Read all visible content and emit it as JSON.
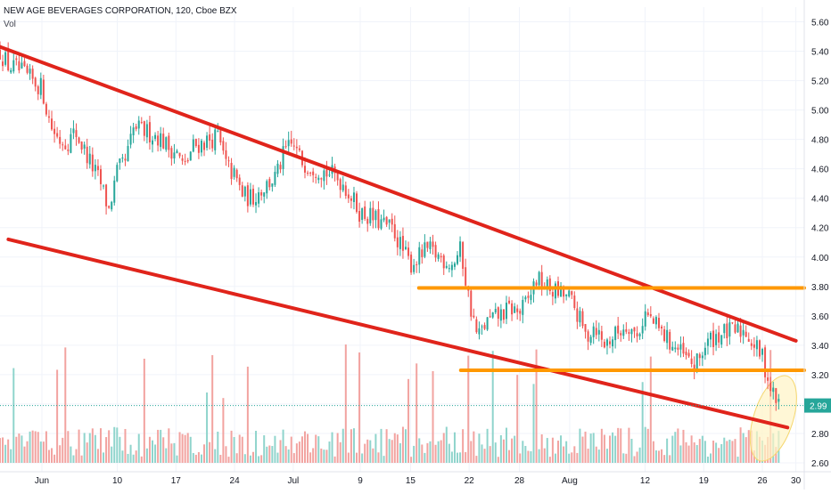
{
  "header": {
    "title": "NEW AGE BEVERAGES CORPORATION, 120, Cboe BZX",
    "volume_label": "Vol"
  },
  "colors": {
    "up": "#26a69a",
    "down": "#ef5350",
    "volume_up": "#8fd4cc",
    "volume_down": "#f2a3a0",
    "trendline": "#e0241b",
    "support": "#ff9800",
    "last_price": "#26a69a",
    "highlight": "#fff3c4",
    "highlight_border": "#f5d76e"
  },
  "chart_data": {
    "type": "candlestick",
    "price_scale": {
      "min": 2.6,
      "max": 5.7,
      "ticks": [
        "5.60",
        "5.40",
        "5.20",
        "5.00",
        "4.80",
        "4.60",
        "4.40",
        "4.20",
        "4.00",
        "3.80",
        "3.60",
        "3.40",
        "3.20",
        "3.00",
        "2.80",
        "2.60"
      ]
    },
    "time_scale": {
      "start": "2020-05-27",
      "end": "2020-08-31",
      "ticks": [
        {
          "label": "Jun",
          "date": "2020-06-01"
        },
        {
          "label": "10",
          "date": "2020-06-10"
        },
        {
          "label": "17",
          "date": "2020-06-17"
        },
        {
          "label": "24",
          "date": "2020-06-24"
        },
        {
          "label": "Jul",
          "date": "2020-07-01"
        },
        {
          "label": "9",
          "date": "2020-07-09"
        },
        {
          "label": "15",
          "date": "2020-07-15"
        },
        {
          "label": "22",
          "date": "2020-07-22"
        },
        {
          "label": "28",
          "date": "2020-07-28"
        },
        {
          "label": "Aug",
          "date": "2020-08-03"
        },
        {
          "label": "12",
          "date": "2020-08-12"
        },
        {
          "label": "19",
          "date": "2020-08-19"
        },
        {
          "label": "26",
          "date": "2020-08-26"
        },
        {
          "label": "30",
          "date": "2020-08-30"
        }
      ]
    },
    "last_price": "2.99",
    "price_path": [
      [
        "2020-05-27",
        5.4
      ],
      [
        "2020-05-28",
        5.3
      ],
      [
        "2020-05-29",
        5.28
      ],
      [
        "2020-06-01",
        5.15
      ],
      [
        "2020-06-02",
        4.9
      ],
      [
        "2020-06-03",
        4.8
      ],
      [
        "2020-06-04",
        4.78
      ],
      [
        "2020-06-05",
        4.85
      ],
      [
        "2020-06-08",
        4.5
      ],
      [
        "2020-06-09",
        4.32
      ],
      [
        "2020-06-10",
        4.58
      ],
      [
        "2020-06-11",
        4.65
      ],
      [
        "2020-06-12",
        4.88
      ],
      [
        "2020-06-15",
        4.82
      ],
      [
        "2020-06-16",
        4.75
      ],
      [
        "2020-06-17",
        4.72
      ],
      [
        "2020-06-18",
        4.6
      ],
      [
        "2020-06-19",
        4.75
      ],
      [
        "2020-06-22",
        4.82
      ],
      [
        "2020-06-23",
        4.62
      ],
      [
        "2020-06-24",
        4.55
      ],
      [
        "2020-06-25",
        4.42
      ],
      [
        "2020-06-26",
        4.4
      ],
      [
        "2020-06-29",
        4.55
      ],
      [
        "2020-06-30",
        4.72
      ],
      [
        "2020-07-01",
        4.76
      ],
      [
        "2020-07-02",
        4.65
      ],
      [
        "2020-07-06",
        4.55
      ],
      [
        "2020-07-07",
        4.5
      ],
      [
        "2020-07-08",
        4.4
      ],
      [
        "2020-07-09",
        4.3
      ],
      [
        "2020-07-10",
        4.28
      ],
      [
        "2020-07-13",
        4.18
      ],
      [
        "2020-07-14",
        4.05
      ],
      [
        "2020-07-15",
        3.95
      ],
      [
        "2020-07-16",
        4.0
      ],
      [
        "2020-07-17",
        4.05
      ],
      [
        "2020-07-20",
        3.95
      ],
      [
        "2020-07-21",
        4.05
      ],
      [
        "2020-07-22",
        3.7
      ],
      [
        "2020-07-23",
        3.45
      ],
      [
        "2020-07-24",
        3.55
      ],
      [
        "2020-07-27",
        3.65
      ],
      [
        "2020-07-28",
        3.62
      ],
      [
        "2020-07-29",
        3.7
      ],
      [
        "2020-07-30",
        3.85
      ],
      [
        "2020-07-31",
        3.8
      ],
      [
        "2020-08-03",
        3.72
      ],
      [
        "2020-08-04",
        3.6
      ],
      [
        "2020-08-05",
        3.45
      ],
      [
        "2020-08-06",
        3.55
      ],
      [
        "2020-08-07",
        3.4
      ],
      [
        "2020-08-10",
        3.55
      ],
      [
        "2020-08-11",
        3.45
      ],
      [
        "2020-08-12",
        3.62
      ],
      [
        "2020-08-13",
        3.55
      ],
      [
        "2020-08-14",
        3.48
      ],
      [
        "2020-08-17",
        3.3
      ],
      [
        "2020-08-18",
        3.25
      ],
      [
        "2020-08-19",
        3.38
      ],
      [
        "2020-08-20",
        3.45
      ],
      [
        "2020-08-21",
        3.48
      ],
      [
        "2020-08-24",
        3.5
      ],
      [
        "2020-08-25",
        3.4
      ],
      [
        "2020-08-26",
        3.32
      ],
      [
        "2020-08-27",
        3.1
      ],
      [
        "2020-08-28",
        2.99
      ]
    ]
  }
}
